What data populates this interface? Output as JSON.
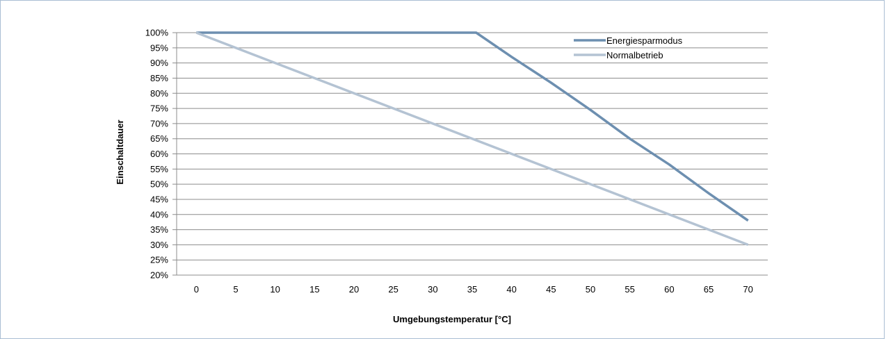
{
  "chart_data": {
    "type": "line",
    "x": [
      0,
      5,
      10,
      15,
      20,
      25,
      30,
      35,
      40,
      45,
      50,
      55,
      60,
      65,
      70
    ],
    "series": [
      {
        "name": "Energiesparmodus",
        "color": "#6d8fb0",
        "points": [
          [
            0,
            100
          ],
          [
            35.5,
            100
          ],
          [
            40,
            92
          ],
          [
            45,
            83.5
          ],
          [
            50,
            74.5
          ],
          [
            55,
            65
          ],
          [
            60,
            56.5
          ],
          [
            65,
            47
          ],
          [
            70,
            38
          ]
        ]
      },
      {
        "name": "Normalbetrieb",
        "color": "#b4c3d3",
        "points": [
          [
            0,
            100
          ],
          [
            70,
            30
          ]
        ]
      }
    ],
    "y_ticks": [
      "20%",
      "25%",
      "30%",
      "35%",
      "40%",
      "45%",
      "50%",
      "55%",
      "60%",
      "65%",
      "70%",
      "75%",
      "80%",
      "85%",
      "90%",
      "95%",
      "100%"
    ],
    "x_ticks": [
      "0",
      "5",
      "10",
      "15",
      "20",
      "25",
      "30",
      "35",
      "40",
      "45",
      "50",
      "55",
      "60",
      "65",
      "70"
    ],
    "xlabel": "Umgebungstemperatur [°C]",
    "ylabel": "Einschaltdauer",
    "ylim": [
      20,
      100
    ],
    "xlim": [
      -2.5,
      72.5
    ],
    "grid": "horizontal",
    "legend": "top-right"
  }
}
